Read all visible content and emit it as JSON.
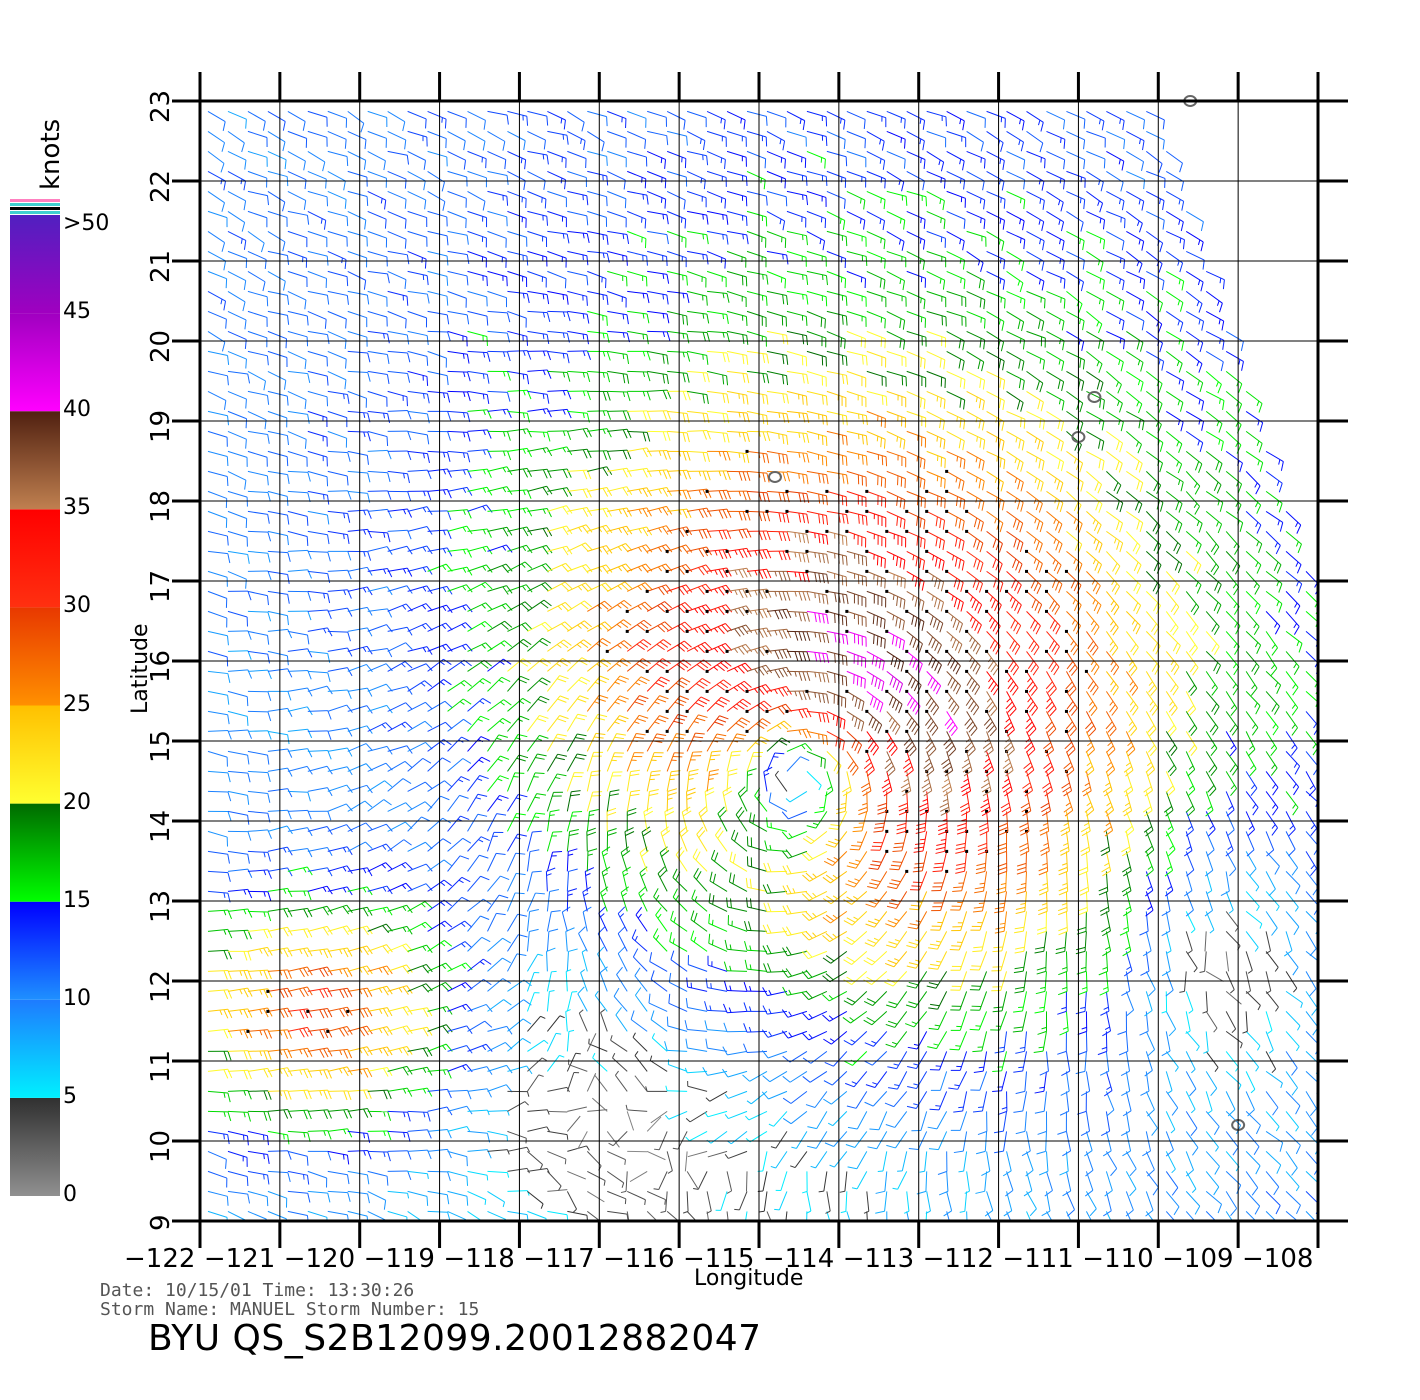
{
  "chart_data": {
    "type": "wind-barb-map",
    "xlabel": "Longitude",
    "ylabel": "Latitude",
    "xlim": [
      -122,
      -108
    ],
    "ylim": [
      9,
      23
    ],
    "x_ticks": [
      "−122",
      "−121",
      "−120",
      "−119",
      "−118",
      "−117",
      "−116",
      "−115",
      "−114",
      "−113",
      "−112",
      "−111",
      "−110",
      "−109",
      "−108"
    ],
    "x_tick_values": [
      -122,
      -121,
      -120,
      -119,
      -118,
      -117,
      -116,
      -115,
      -114,
      -113,
      -112,
      -111,
      -110,
      -109,
      -108
    ],
    "y_ticks": [
      "9",
      "10",
      "11",
      "12",
      "13",
      "14",
      "15",
      "16",
      "17",
      "18",
      "19",
      "20",
      "21",
      "22",
      "23"
    ],
    "y_tick_values": [
      9,
      10,
      11,
      12,
      13,
      14,
      15,
      16,
      17,
      18,
      19,
      20,
      21,
      22,
      23
    ],
    "grid": true,
    "storm_center": {
      "lon": -114.4,
      "lat": 14.7
    },
    "secondary_jet_center": {
      "lon": -120.6,
      "lat": 11.6
    },
    "colorbar": {
      "units": "knots",
      "labels": [
        ">50",
        "45",
        "40",
        "35",
        "30",
        "25",
        "20",
        "15",
        "10",
        "5",
        "0"
      ],
      "label_values": [
        50,
        45,
        40,
        35,
        30,
        25,
        20,
        15,
        10,
        5,
        0
      ],
      "bands": [
        {
          "from": 0,
          "to": 5,
          "top": "#303030",
          "bottom": "#909090"
        },
        {
          "from": 5,
          "to": 10,
          "top": "#1e7bff",
          "bottom": "#00f0ff"
        },
        {
          "from": 10,
          "to": 15,
          "top": "#0000ff",
          "bottom": "#1e90ff"
        },
        {
          "from": 15,
          "to": 20,
          "top": "#006a00",
          "bottom": "#00ff00"
        },
        {
          "from": 20,
          "to": 25,
          "top": "#ffc000",
          "bottom": "#ffff30"
        },
        {
          "from": 25,
          "to": 30,
          "top": "#e83800",
          "bottom": "#ff9000"
        },
        {
          "from": 30,
          "to": 35,
          "top": "#ff0000",
          "bottom": "#ff3010"
        },
        {
          "from": 35,
          "to": 40,
          "top": "#502010",
          "bottom": "#c08050"
        },
        {
          "from": 40,
          "to": 45,
          "top": "#a000c0",
          "bottom": "#ff00ff"
        },
        {
          "from": 45,
          "to": 50,
          "top": "#5020c0",
          "bottom": "#a000c0"
        }
      ],
      "top_stripes": [
        "#ff80c0",
        "#40d0d0",
        "#000000",
        "#40d0d0"
      ]
    },
    "islands": [
      {
        "lon": -109.6,
        "lat": 23.0
      },
      {
        "lon": -110.8,
        "lat": 19.3
      },
      {
        "lon": -111.0,
        "lat": 18.8
      },
      {
        "lon": -114.8,
        "lat": 18.3
      },
      {
        "lon": -109.0,
        "lat": 10.2
      }
    ]
  },
  "footer": {
    "date_line": "Date: 10/15/01   Time: 13:30:26",
    "storm_line": "Storm Name: MANUEL   Storm Number: 15",
    "title": "BYU  QS_S2B12099.20012882047"
  }
}
